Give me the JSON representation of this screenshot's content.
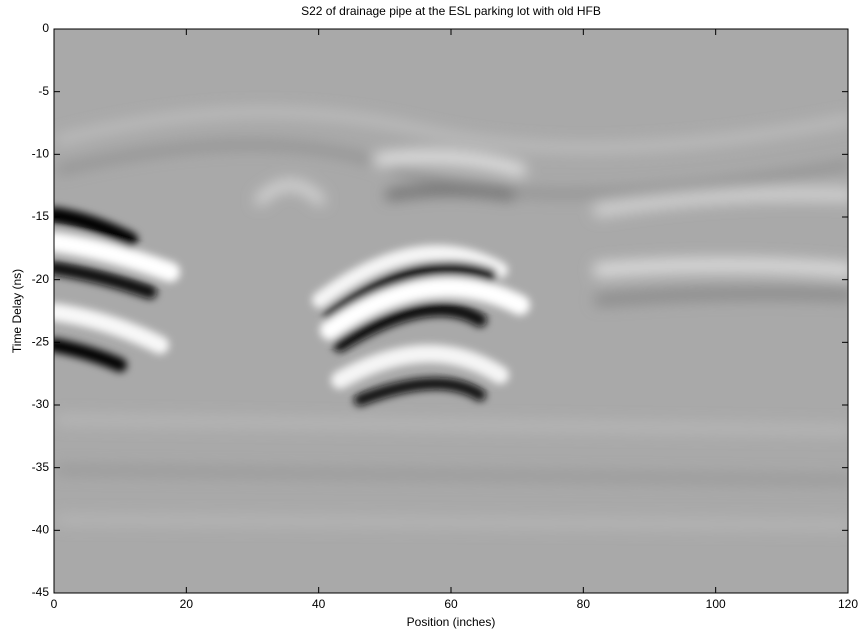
{
  "chart_data": {
    "type": "image",
    "title": "S22 of drainage pipe at the ESL parking lot with old HFB",
    "x_label": "Position (inches)",
    "y_label": "Time Delay (ns)",
    "xlim": [
      0,
      120
    ],
    "xticks": [
      0,
      20,
      40,
      60,
      80,
      100,
      120
    ],
    "ylim": [
      -45,
      0
    ],
    "yticks": [
      0,
      -5,
      -10,
      -15,
      -20,
      -25,
      -30,
      -35,
      -40,
      -45
    ],
    "colormap": "gray"
  }
}
